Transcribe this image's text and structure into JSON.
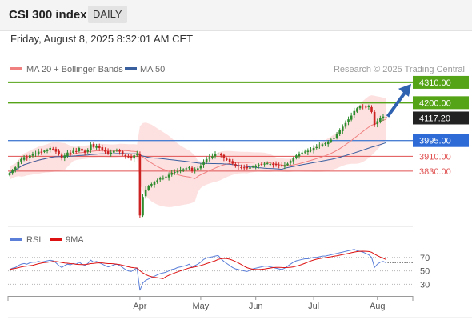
{
  "header": {
    "title": "CSI 300 index",
    "timeframe": "DAILY",
    "datetime": "Friday, August 8, 2025 8:32:01 AM CET"
  },
  "legend": {
    "ma20": "MA 20 + Bollinger Bands",
    "ma50": "MA 50",
    "credit": "Research © 2025 Trading Central",
    "rsi": "RSI",
    "ma9": "9MA"
  },
  "colors": {
    "up_candle": "#2e8b2e",
    "down_candle": "#cc2222",
    "ma20": "#f08080",
    "band_fill": "#fde1e1",
    "ma50": "#3a5f9f",
    "resistance": "#55a316",
    "pivot": "#4a7fd4",
    "support": "#e05050",
    "last_price": "#222222",
    "arrow": "#2f62b0",
    "rsi_line": "#5b7fd8",
    "rsi_ma": "#dd1111"
  },
  "chart_data": {
    "type": "candlestick",
    "price_range": [
      3535,
      4340
    ],
    "levels": [
      {
        "id": "r2",
        "label": "4310.00",
        "value": 4310.0,
        "kind": "resistance"
      },
      {
        "id": "r1",
        "label": "4200.00",
        "value": 4200.0,
        "kind": "resistance"
      },
      {
        "id": "last",
        "label": "4117.20",
        "value": 4117.2,
        "kind": "last"
      },
      {
        "id": "pivot",
        "label": "3995.00",
        "value": 3995.0,
        "kind": "pivot"
      },
      {
        "id": "s1",
        "label": "3910.00",
        "value": 3910.0,
        "kind": "support"
      },
      {
        "id": "s2",
        "label": "3830.00",
        "value": 3830.0,
        "kind": "support"
      }
    ],
    "x_axis": {
      "ticks": [
        {
          "label": "Apr",
          "index": 45
        },
        {
          "label": "May",
          "index": 66
        },
        {
          "label": "Jun",
          "index": 85
        },
        {
          "label": "Jul",
          "index": 105
        },
        {
          "label": "Aug",
          "index": 127
        }
      ]
    },
    "closes": [
      3820,
      3835,
      3850,
      3880,
      3895,
      3905,
      3898,
      3915,
      3920,
      3925,
      3935,
      3930,
      3940,
      3945,
      3955,
      3950,
      3935,
      3920,
      3900,
      3915,
      3930,
      3925,
      3940,
      3935,
      3955,
      3940,
      3930,
      3945,
      3975,
      3960,
      3965,
      3955,
      3945,
      3935,
      3925,
      3930,
      3940,
      3945,
      3935,
      3920,
      3910,
      3905,
      3900,
      3915,
      3925,
      3590,
      3690,
      3730,
      3750,
      3760,
      3770,
      3780,
      3790,
      3795,
      3800,
      3810,
      3820,
      3825,
      3830,
      3835,
      3840,
      3845,
      3850,
      3830,
      3840,
      3845,
      3860,
      3880,
      3895,
      3905,
      3910,
      3920,
      3925,
      3915,
      3900,
      3895,
      3880,
      3870,
      3860,
      3855,
      3850,
      3848,
      3845,
      3850,
      3855,
      3860,
      3865,
      3868,
      3870,
      3872,
      3868,
      3865,
      3863,
      3860,
      3858,
      3862,
      3870,
      3885,
      3900,
      3915,
      3925,
      3930,
      3935,
      3940,
      3945,
      3955,
      3960,
      3968,
      3975,
      3980,
      3990,
      4000,
      4010,
      4030,
      4050,
      4070,
      4090,
      4110,
      4130,
      4155,
      4170,
      4180,
      4180,
      4175,
      4180,
      4150,
      4080,
      4100,
      4115,
      4125,
      4117
    ],
    "rsi_axis": [
      30,
      50,
      70
    ],
    "rsi_range": [
      15,
      90
    ],
    "rsi": [
      52,
      54,
      55,
      58,
      60,
      61,
      60,
      62,
      63,
      63,
      64,
      63,
      64,
      65,
      66,
      65,
      62,
      58,
      55,
      58,
      60,
      59,
      61,
      60,
      63,
      60,
      58,
      61,
      66,
      63,
      64,
      62,
      60,
      58,
      56,
      57,
      59,
      60,
      58,
      55,
      52,
      50,
      49,
      52,
      54,
      21,
      32,
      36,
      38,
      40,
      42,
      44,
      46,
      47,
      48,
      50,
      52,
      53,
      55,
      56,
      57,
      58,
      60,
      55,
      58,
      60,
      63,
      67,
      69,
      70,
      71,
      72,
      73,
      68,
      64,
      61,
      58,
      55,
      53,
      52,
      51,
      50,
      49,
      51,
      53,
      54,
      55,
      56,
      57,
      57,
      56,
      55,
      54,
      53,
      52,
      54,
      57,
      60,
      63,
      65,
      66,
      67,
      68,
      68,
      69,
      70,
      70,
      71,
      72,
      72,
      73,
      74,
      75,
      76,
      77,
      78,
      79,
      80,
      81,
      82,
      80,
      79,
      78,
      76,
      74,
      70,
      55,
      60,
      63,
      64,
      62
    ]
  }
}
